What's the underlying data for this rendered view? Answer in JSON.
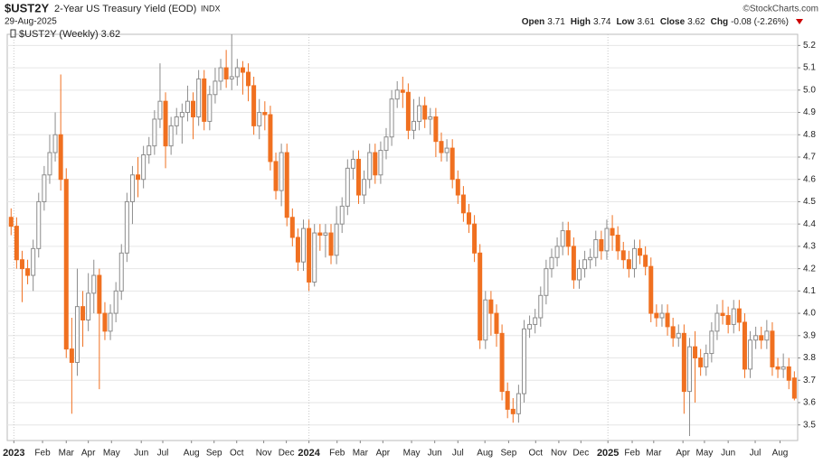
{
  "header": {
    "symbol": "$UST2Y",
    "name": "2-Year US Treasury Yield (EOD)",
    "exchange": "INDX",
    "date": "29-Aug-2025",
    "source": "©StockCharts.com",
    "quote": [
      {
        "label": "Open",
        "value": "3.71"
      },
      {
        "label": "High",
        "value": "3.74"
      },
      {
        "label": "Low",
        "value": "3.61"
      },
      {
        "label": "Close",
        "value": "3.62"
      },
      {
        "label": "Chg",
        "value": "-0.08 (-2.26%)"
      }
    ]
  },
  "chart_data": {
    "type": "candlestick",
    "legend": "$UST2Y (Weekly) 3.62",
    "open": [
      4.43,
      4.39,
      4.24,
      4.2,
      4.17,
      4.29,
      4.5,
      4.62,
      4.72,
      4.8,
      4.6,
      3.84,
      3.78,
      4.03,
      3.97,
      4.09,
      4.17,
      4.0,
      3.92,
      4.0,
      4.1,
      4.27,
      4.5,
      4.62,
      4.6,
      4.71,
      4.75,
      4.87,
      4.95,
      4.75,
      4.84,
      4.88,
      4.9,
      4.95,
      4.88,
      5.05,
      4.86,
      4.98,
      5.04,
      5.1,
      5.05,
      5.06,
      5.1,
      5.08,
      5.02,
      4.84,
      4.9,
      4.89,
      4.68,
      4.55,
      4.72,
      4.43,
      4.34,
      4.23,
      4.38,
      4.14,
      4.36,
      4.35,
      4.36,
      4.26,
      4.4,
      4.48,
      4.65,
      4.69,
      4.53,
      4.6,
      4.72,
      4.62,
      4.73,
      4.79,
      4.96,
      5.0,
      4.99,
      4.82,
      4.86,
      4.93,
      4.87,
      4.88,
      4.77,
      4.72,
      4.74,
      4.6,
      4.53,
      4.45,
      4.4,
      4.27,
      3.88,
      4.06,
      4.0,
      3.91,
      3.65,
      3.57,
      3.55,
      3.64,
      3.93,
      3.95,
      3.98,
      4.08,
      4.2,
      4.25,
      4.3,
      4.37,
      4.3,
      4.15,
      4.2,
      4.24,
      4.25,
      4.33,
      4.28,
      4.38,
      4.35,
      4.28,
      4.24,
      4.2,
      4.29,
      4.26,
      4.21,
      4.0,
      3.98,
      4.0,
      3.94,
      3.89,
      3.91,
      3.65,
      3.85,
      3.8,
      3.76,
      3.82,
      3.92,
      4.0,
      3.99,
      3.95,
      4.02,
      3.96,
      3.75,
      3.88,
      3.9,
      3.88,
      3.92,
      3.76,
      3.75,
      3.76,
      3.71
    ],
    "high": [
      4.47,
      4.43,
      4.28,
      4.24,
      4.33,
      4.54,
      4.66,
      4.8,
      4.9,
      5.07,
      4.65,
      3.98,
      4.2,
      4.1,
      4.18,
      4.24,
      4.2,
      4.05,
      4.04,
      4.14,
      4.31,
      4.54,
      4.66,
      4.7,
      4.75,
      4.79,
      4.91,
      5.12,
      4.99,
      4.88,
      4.92,
      4.94,
      5.02,
      4.99,
      5.09,
      5.09,
      5.02,
      5.1,
      5.14,
      5.18,
      5.25,
      5.14,
      5.13,
      5.12,
      5.06,
      4.96,
      4.95,
      4.93,
      4.72,
      4.76,
      4.76,
      4.47,
      4.38,
      4.42,
      4.42,
      4.4,
      4.4,
      4.4,
      4.4,
      4.48,
      4.52,
      4.69,
      4.73,
      4.73,
      4.64,
      4.76,
      4.76,
      4.77,
      4.83,
      5.0,
      5.04,
      5.06,
      5.03,
      4.96,
      4.97,
      4.97,
      4.92,
      4.92,
      4.81,
      4.78,
      4.78,
      4.64,
      4.57,
      4.49,
      4.44,
      4.31,
      4.1,
      4.1,
      4.04,
      3.95,
      3.69,
      3.62,
      3.68,
      3.97,
      3.99,
      4.02,
      4.12,
      4.24,
      4.29,
      4.34,
      4.41,
      4.41,
      4.34,
      4.24,
      4.28,
      4.29,
      4.37,
      4.37,
      4.42,
      4.44,
      4.39,
      4.32,
      4.28,
      4.33,
      4.33,
      4.3,
      4.25,
      4.04,
      4.04,
      4.04,
      3.98,
      3.95,
      3.95,
      3.89,
      3.92,
      3.84,
      3.86,
      3.96,
      4.04,
      4.06,
      4.03,
      4.06,
      4.06,
      4.0,
      3.92,
      3.94,
      3.94,
      3.97,
      3.96,
      3.8,
      3.82,
      3.8,
      3.74
    ],
    "low": [
      4.35,
      4.2,
      4.05,
      4.13,
      4.1,
      4.25,
      4.46,
      4.58,
      4.68,
      4.55,
      3.8,
      3.55,
      3.72,
      3.85,
      3.92,
      4.0,
      3.66,
      3.88,
      3.88,
      3.96,
      4.06,
      4.23,
      4.4,
      4.52,
      4.56,
      4.67,
      4.71,
      4.83,
      4.65,
      4.71,
      4.8,
      4.76,
      4.86,
      4.78,
      4.84,
      4.82,
      4.82,
      4.94,
      5.0,
      5.01,
      5.0,
      5.02,
      4.98,
      4.95,
      4.8,
      4.78,
      4.82,
      4.64,
      4.51,
      4.48,
      4.39,
      4.3,
      4.19,
      4.19,
      4.1,
      4.12,
      4.28,
      4.25,
      4.22,
      4.22,
      4.36,
      4.44,
      4.6,
      4.49,
      4.49,
      4.56,
      4.58,
      4.58,
      4.69,
      4.75,
      4.92,
      4.92,
      4.78,
      4.78,
      4.82,
      4.83,
      4.8,
      4.7,
      4.68,
      4.68,
      4.56,
      4.49,
      4.41,
      4.36,
      4.23,
      3.84,
      3.84,
      3.9,
      3.85,
      3.61,
      3.53,
      3.51,
      3.51,
      3.6,
      3.89,
      3.91,
      3.94,
      4.04,
      4.16,
      4.21,
      4.26,
      4.26,
      4.11,
      4.11,
      4.16,
      4.2,
      4.21,
      4.24,
      4.24,
      4.28,
      4.24,
      4.2,
      4.16,
      4.16,
      4.22,
      4.17,
      3.96,
      3.94,
      3.94,
      3.9,
      3.85,
      3.85,
      3.55,
      3.45,
      3.6,
      3.72,
      3.72,
      3.78,
      3.88,
      3.95,
      3.91,
      3.91,
      3.92,
      3.71,
      3.71,
      3.84,
      3.84,
      3.84,
      3.72,
      3.71,
      3.71,
      3.66,
      3.61
    ],
    "close": [
      4.39,
      4.24,
      4.2,
      4.17,
      4.29,
      4.5,
      4.62,
      4.72,
      4.8,
      4.6,
      3.84,
      3.78,
      4.03,
      3.97,
      4.09,
      4.17,
      4.0,
      3.92,
      4.0,
      4.1,
      4.27,
      4.5,
      4.62,
      4.6,
      4.71,
      4.75,
      4.87,
      4.95,
      4.75,
      4.84,
      4.88,
      4.9,
      4.95,
      4.88,
      5.05,
      4.86,
      4.98,
      5.04,
      5.1,
      5.05,
      5.06,
      5.1,
      5.08,
      5.02,
      4.84,
      4.9,
      4.89,
      4.68,
      4.55,
      4.72,
      4.43,
      4.34,
      4.23,
      4.38,
      4.14,
      4.36,
      4.35,
      4.36,
      4.26,
      4.4,
      4.48,
      4.65,
      4.69,
      4.53,
      4.6,
      4.72,
      4.62,
      4.73,
      4.79,
      4.96,
      5.0,
      4.99,
      4.82,
      4.86,
      4.93,
      4.87,
      4.88,
      4.77,
      4.72,
      4.74,
      4.6,
      4.53,
      4.45,
      4.4,
      4.27,
      3.88,
      4.06,
      4.0,
      3.91,
      3.65,
      3.57,
      3.55,
      3.64,
      3.93,
      3.95,
      3.98,
      4.08,
      4.2,
      4.25,
      4.3,
      4.37,
      4.3,
      4.15,
      4.2,
      4.24,
      4.25,
      4.33,
      4.28,
      4.38,
      4.35,
      4.28,
      4.24,
      4.2,
      4.29,
      4.26,
      4.21,
      4.0,
      3.98,
      4.0,
      3.94,
      3.89,
      3.91,
      3.65,
      3.85,
      3.8,
      3.76,
      3.82,
      3.92,
      4.0,
      3.99,
      3.95,
      4.02,
      3.96,
      3.75,
      3.88,
      3.9,
      3.88,
      3.92,
      3.76,
      3.75,
      3.76,
      3.7,
      3.62
    ],
    "up_color": "#ffffff",
    "down_color": "#f07020",
    "edge_color": "#8c8c8c",
    "xlim": [
      -0.7,
      142.6
    ],
    "xticks": [
      {
        "value": 0.5,
        "label": "2023"
      },
      {
        "value": 5.7,
        "label": "Feb"
      },
      {
        "value": 10,
        "label": "Mar"
      },
      {
        "value": 14,
        "label": "Apr"
      },
      {
        "value": 18.2,
        "label": "May"
      },
      {
        "value": 23.6,
        "label": "Jun"
      },
      {
        "value": 27.5,
        "label": "Jul"
      },
      {
        "value": 32.7,
        "label": "Aug"
      },
      {
        "value": 36.8,
        "label": "Sep"
      },
      {
        "value": 40.9,
        "label": "Oct"
      },
      {
        "value": 45.8,
        "label": "Nov"
      },
      {
        "value": 49.9,
        "label": "Dec"
      },
      {
        "value": 54,
        "label": "2024"
      },
      {
        "value": 59.1,
        "label": "Feb"
      },
      {
        "value": 63.3,
        "label": "Mar"
      },
      {
        "value": 67.4,
        "label": "Apr"
      },
      {
        "value": 72.6,
        "label": "May"
      },
      {
        "value": 76.8,
        "label": "Jun"
      },
      {
        "value": 81,
        "label": "Jul"
      },
      {
        "value": 85.9,
        "label": "Aug"
      },
      {
        "value": 90.2,
        "label": "Sep"
      },
      {
        "value": 95.1,
        "label": "Oct"
      },
      {
        "value": 99.3,
        "label": "Nov"
      },
      {
        "value": 103.3,
        "label": "Dec"
      },
      {
        "value": 108.2,
        "label": "2025"
      },
      {
        "value": 112.6,
        "label": "Feb"
      },
      {
        "value": 116.5,
        "label": "Mar"
      },
      {
        "value": 121.8,
        "label": "Apr"
      },
      {
        "value": 125.7,
        "label": "May"
      },
      {
        "value": 130,
        "label": "Jun"
      },
      {
        "value": 134.9,
        "label": "Jul"
      },
      {
        "value": 139.4,
        "label": "Aug"
      }
    ],
    "ylim": [
      3.43,
      5.25
    ],
    "yticks": [
      3.5,
      3.6,
      3.7,
      3.8,
      3.9,
      {
        "value": 4,
        "label": "4.0"
      },
      4.1,
      4.2,
      4.3,
      4.4,
      4.5,
      4.6,
      4.7,
      4.8,
      4.9,
      {
        "value": 5,
        "label": "5.0"
      },
      5.1,
      5.2
    ],
    "grid": true
  }
}
